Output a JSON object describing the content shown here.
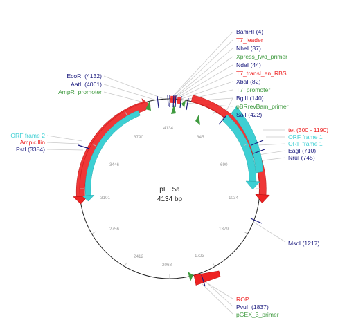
{
  "plasmid": {
    "name": "pET5a",
    "length_label": "4134 bp",
    "length": 4134
  },
  "colors": {
    "enzyme": "#1a1a7e",
    "red_feature": "#ee2222",
    "primer": "#3f9a3f",
    "orf": "#3dcfd3",
    "backbone": "#222222",
    "leader": "#c9c9c9",
    "tick_text": "#999999"
  },
  "ruler_ticks": [
    "4134",
    "345",
    "690",
    "1034",
    "1379",
    "1723",
    "2068",
    "2412",
    "2756",
    "3101",
    "3446",
    "3790"
  ],
  "labels": [
    {
      "name": "label-bamhi",
      "text": "BamHI (4)",
      "type": "enzyme",
      "pos": 4
    },
    {
      "name": "label-t7-leader",
      "text": "T7_leader",
      "type": "feature",
      "pos": 14
    },
    {
      "name": "label-nhei",
      "text": "NheI (37)",
      "type": "enzyme",
      "pos": 37
    },
    {
      "name": "label-xpress",
      "text": "Xpress_fwd_primer",
      "type": "primer",
      "pos": 30
    },
    {
      "name": "label-ndei",
      "text": "NdeI (44)",
      "type": "enzyme",
      "pos": 44
    },
    {
      "name": "label-t7-transl",
      "text": "T7_transl_en_RBS",
      "type": "feature",
      "pos": 60
    },
    {
      "name": "label-xbai",
      "text": "XbaI (82)",
      "type": "enzyme",
      "pos": 82
    },
    {
      "name": "label-t7-promoter",
      "text": "T7_promoter",
      "type": "primer",
      "pos": 100
    },
    {
      "name": "label-bglii",
      "text": "BglII (140)",
      "type": "enzyme",
      "pos": 140
    },
    {
      "name": "label-pbrrevbam",
      "text": "pBRrevBam_primer",
      "type": "primer",
      "pos": 150
    },
    {
      "name": "label-sali",
      "text": "SalI (422)",
      "type": "enzyme",
      "pos": 422
    },
    {
      "name": "label-tet",
      "text": "tet (300 - 1190)",
      "type": "feature",
      "pos": 300
    },
    {
      "name": "label-orf-frame1-a",
      "text": "ORF frame 1",
      "type": "orf",
      "pos": 440
    },
    {
      "name": "label-orf-frame1-b",
      "text": "ORF frame 1",
      "type": "orf",
      "pos": 560
    },
    {
      "name": "label-eagi",
      "text": "EagI (710)",
      "type": "enzyme",
      "pos": 710
    },
    {
      "name": "label-nrui",
      "text": "NruI (745)",
      "type": "enzyme",
      "pos": 745
    },
    {
      "name": "label-msci",
      "text": "MscI (1217)",
      "type": "enzyme",
      "pos": 1217
    },
    {
      "name": "label-rop",
      "text": "ROP",
      "type": "feature",
      "pos": 1860
    },
    {
      "name": "label-pvuii",
      "text": "PvuII (1837)",
      "type": "enzyme",
      "pos": 1837
    },
    {
      "name": "label-pgex3",
      "text": "pGEX_3_primer",
      "type": "primer",
      "pos": 1800
    },
    {
      "name": "label-ecori",
      "text": "EcoRI (4132)",
      "type": "enzyme",
      "pos": 4132
    },
    {
      "name": "label-aatii",
      "text": "AatII (4061)",
      "type": "enzyme",
      "pos": 4061
    },
    {
      "name": "label-ampr-promoter",
      "text": "AmpR_promoter",
      "type": "primer",
      "pos": 3990
    },
    {
      "name": "label-orf-frame2",
      "text": "ORF frame 2",
      "type": "orf",
      "pos": 3600
    },
    {
      "name": "label-ampicillin",
      "text": "Ampicillin",
      "type": "feature",
      "pos": 3560
    },
    {
      "name": "label-psti",
      "text": "PstI (3384)",
      "type": "enzyme",
      "pos": 3384
    }
  ]
}
